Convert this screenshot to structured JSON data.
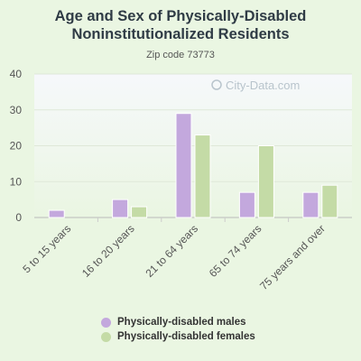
{
  "chart_data": {
    "type": "bar",
    "title_line1": "Age and Sex of Physically-Disabled",
    "title_line2": "Noninstitutionalized Residents",
    "subtitle": "Zip code 73773",
    "watermark": "City-Data.com",
    "categories": [
      "5 to 15 years",
      "16 to 20 years",
      "21 to 64 years",
      "65 to 74 years",
      "75 years and over"
    ],
    "series": [
      {
        "name": "Physically-disabled males",
        "color": "#c3a8dd",
        "values": [
          2,
          5,
          29,
          7,
          7
        ]
      },
      {
        "name": "Physically-disabled females",
        "color": "#c4dba6",
        "values": [
          0,
          3,
          23,
          20,
          9
        ]
      }
    ],
    "ylim": [
      0,
      40
    ],
    "yticks": [
      0,
      10,
      20,
      30,
      40
    ],
    "grid": true,
    "legend_position": "bottom"
  }
}
